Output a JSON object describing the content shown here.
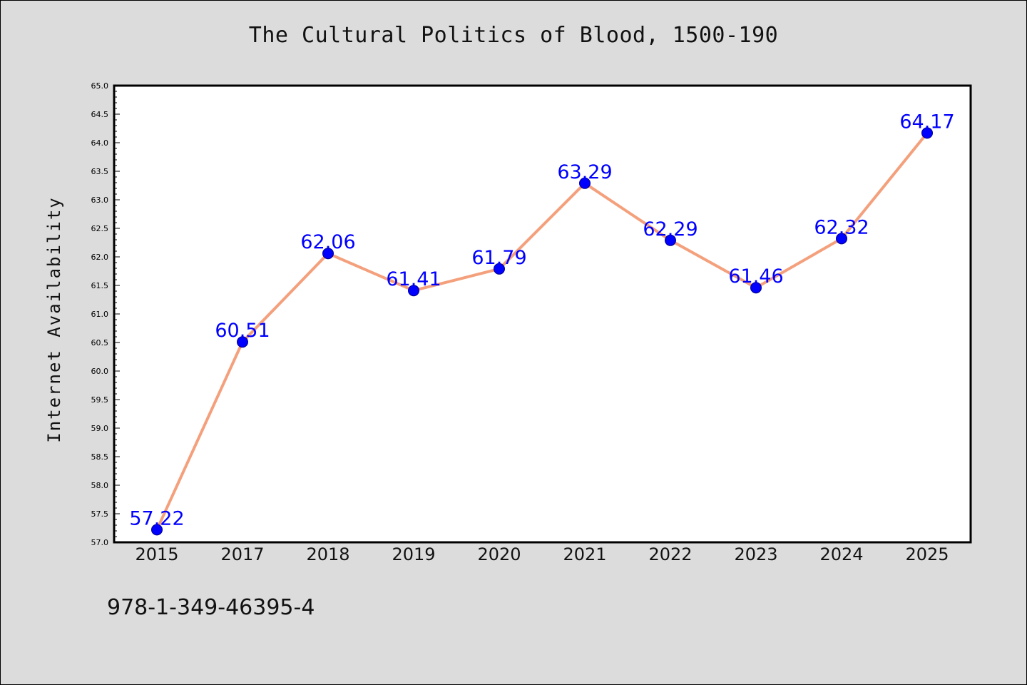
{
  "chart_data": {
    "type": "line",
    "title": "The Cultural Politics of Blood, 1500-190",
    "xlabel": "",
    "ylabel": "Internet Availability",
    "categories": [
      "2015",
      "2017",
      "2018",
      "2019",
      "2020",
      "2021",
      "2022",
      "2023",
      "2024",
      "2025"
    ],
    "series": [
      {
        "values": [
          57.22,
          60.51,
          62.06,
          61.41,
          61.79,
          63.29,
          62.29,
          61.46,
          62.32,
          64.17
        ],
        "data_labels": [
          "57.22",
          "60.51",
          "62.06",
          "61.41",
          "61.79",
          "63.29",
          "62.29",
          "61.46",
          "62.32",
          "64.17"
        ]
      }
    ],
    "ylim": [
      57.0,
      65.0
    ],
    "yticks": [
      "57.0",
      "57.5",
      "58.0",
      "58.5",
      "59.0",
      "59.5",
      "60.0",
      "60.5",
      "61.0",
      "61.5",
      "62.0",
      "62.5",
      "63.0",
      "63.5",
      "64.0",
      "64.5",
      "65.0"
    ],
    "grid": false,
    "legend": "none",
    "colors": {
      "line": "#f4a07c",
      "marker": "#0000ff",
      "labels": "#0000ff",
      "plot_background": "#ffffff",
      "page_background": "#dcdcdc"
    }
  },
  "footer": {
    "isbn": "978-1-349-46395-4"
  }
}
